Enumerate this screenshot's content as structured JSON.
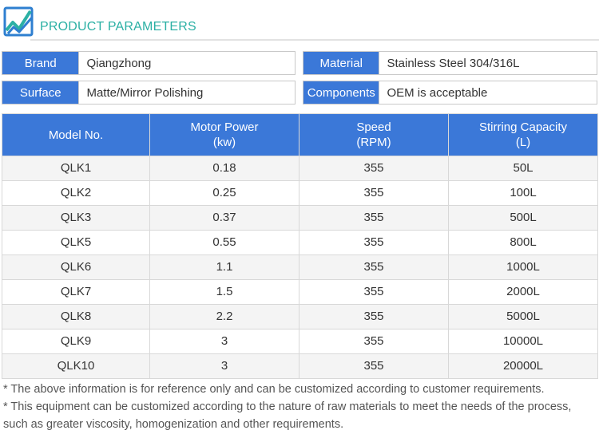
{
  "header": {
    "title": "PRODUCT PARAMETERS",
    "logo_icon": "square-wave-logo-icon",
    "accent_color": "#2bb0a4"
  },
  "specs": [
    {
      "label": "Brand",
      "value": "Qiangzhong"
    },
    {
      "label": "Material",
      "value": "Stainless Steel 304/316L"
    },
    {
      "label": "Surface",
      "value": "Matte/Mirror Polishing"
    },
    {
      "label": "Components",
      "value": "OEM is acceptable"
    }
  ],
  "table": {
    "header_color": "#3b78d8",
    "columns": [
      {
        "line1": "Model No.",
        "line2": ""
      },
      {
        "line1": "Motor Power",
        "line2": "(kw)"
      },
      {
        "line1": "Speed",
        "line2": "(RPM)"
      },
      {
        "line1": "Stirring Capacity",
        "line2": "(L)"
      }
    ],
    "rows": [
      [
        "QLK1",
        "0.18",
        "355",
        "50L"
      ],
      [
        "QLK2",
        "0.25",
        "355",
        "100L"
      ],
      [
        "QLK3",
        "0.37",
        "355",
        "500L"
      ],
      [
        "QLK5",
        "0.55",
        "355",
        "800L"
      ],
      [
        "QLK6",
        "1.1",
        "355",
        "1000L"
      ],
      [
        "QLK7",
        "1.5",
        "355",
        "2000L"
      ],
      [
        "QLK8",
        "2.2",
        "355",
        "5000L"
      ],
      [
        "QLK9",
        "3",
        "355",
        "10000L"
      ],
      [
        "QLK10",
        "3",
        "355",
        "20000L"
      ]
    ]
  },
  "notes": [
    "* The above information is for reference only and can be customized according to customer requirements.",
    "* This equipment can be customized according to the nature of raw materials to meet the needs of the process, such as greater viscosity, homogenization and other requirements."
  ]
}
